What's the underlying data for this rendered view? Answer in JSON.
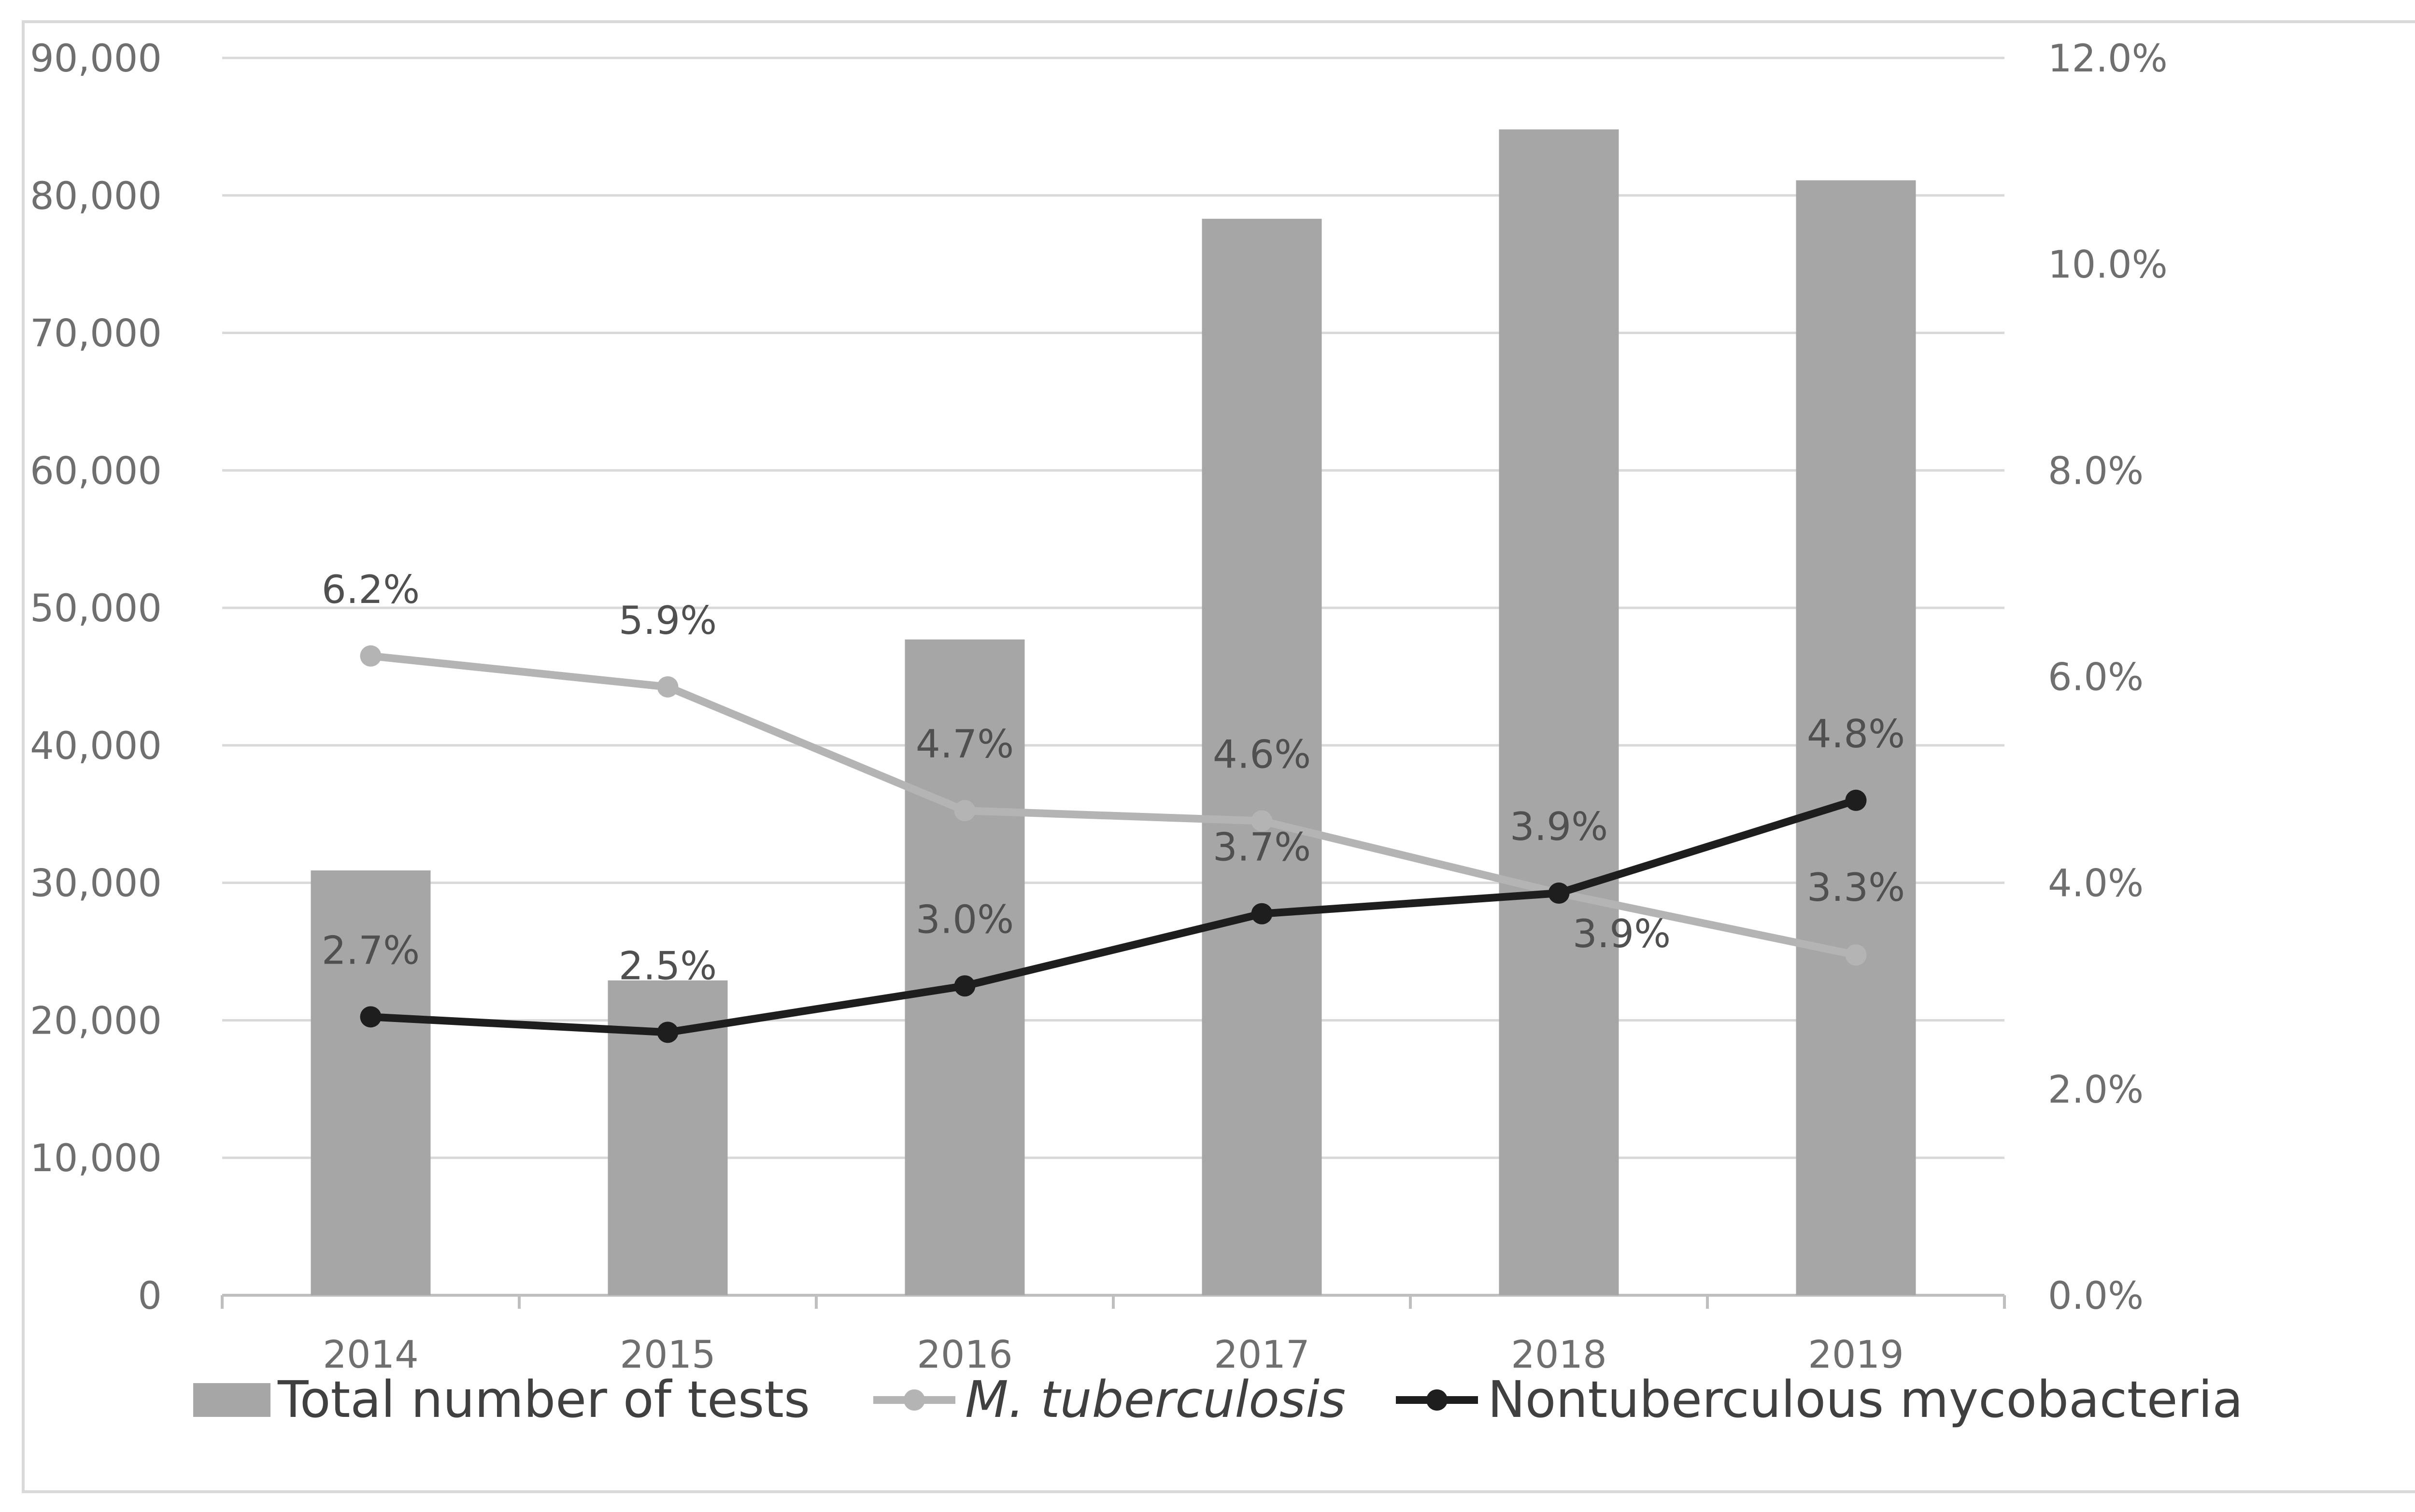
{
  "chart_data": {
    "type": "bar",
    "title": "",
    "xlabel": "",
    "ylabel": "",
    "categories": [
      "2014",
      "2015",
      "2016",
      "2017",
      "2018",
      "2019"
    ],
    "y_left": {
      "ylim": [
        0,
        90000
      ],
      "ticks": [
        0,
        10000,
        20000,
        30000,
        40000,
        50000,
        60000,
        70000,
        80000,
        90000
      ],
      "tick_labels": [
        "0",
        "10,000",
        "20,000",
        "30,000",
        "40,000",
        "50,000",
        "60,000",
        "70,000",
        "80,000",
        "90,000"
      ]
    },
    "y_right": {
      "ylim": [
        0,
        12
      ],
      "ticks": [
        0,
        2,
        4,
        6,
        8,
        10,
        12
      ],
      "tick_labels": [
        "0.0%",
        "2.0%",
        "4.0%",
        "6.0%",
        "8.0%",
        "10.0%",
        "12.0%"
      ]
    },
    "grid": true,
    "legend_position": "bottom",
    "series": [
      {
        "name": "Total number of tests",
        "kind": "bar",
        "axis": "left",
        "color": "#a6a6a6",
        "values": [
          30900,
          22900,
          47700,
          78300,
          84800,
          81100
        ]
      },
      {
        "name": "M. tuberculosis",
        "kind": "line",
        "axis": "right",
        "color": "#b4b4b4",
        "italic": true,
        "values": [
          6.2,
          5.9,
          4.7,
          4.6,
          3.9,
          3.3
        ],
        "labels": [
          "6.2%",
          "5.9%",
          "4.7%",
          "4.6%",
          "3.9%",
          "3.3%"
        ]
      },
      {
        "name": "Nontuberculous mycobacteria",
        "kind": "line",
        "axis": "right",
        "color": "#1e1e1e",
        "italic": false,
        "values": [
          2.7,
          2.55,
          3.0,
          3.7,
          3.9,
          4.8
        ],
        "labels": [
          "2.7%",
          "2.5%",
          "3.0%",
          "3.7%",
          "3.9%",
          "4.8%"
        ]
      }
    ]
  },
  "colors": {
    "grid": "#d9d9d9",
    "axis": "#bfbfbf",
    "frame": "#d9d9d9",
    "tick_text": "#6f6f6f"
  }
}
